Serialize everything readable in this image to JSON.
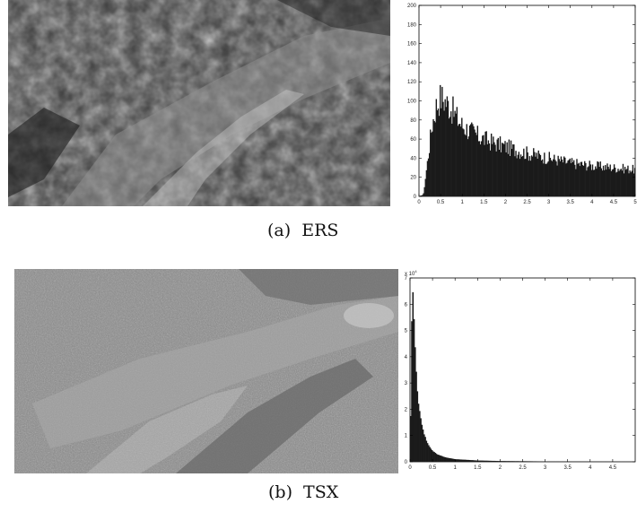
{
  "figure": {
    "panels": [
      {
        "id": "a",
        "caption_label": "(a)",
        "caption_name": "ERS",
        "caption": "(a) ERS"
      },
      {
        "id": "b",
        "caption_label": "(b)",
        "caption_name": "TSX",
        "caption": "(b) TSX"
      }
    ]
  },
  "chart_data": [
    {
      "type": "bar",
      "panel": "(a) ERS",
      "title": "",
      "xlabel": "",
      "ylabel": "",
      "xlim": [
        0,
        5
      ],
      "ylim": [
        0,
        200
      ],
      "x_ticks": [
        "0",
        "0.5",
        "1",
        "1.5",
        "2",
        "2.5",
        "3",
        "3.5",
        "4",
        "4.5",
        "5"
      ],
      "y_ticks": [
        "0",
        "20",
        "40",
        "60",
        "80",
        "100",
        "120",
        "140",
        "160",
        "180",
        "200"
      ],
      "x": [
        0.1,
        0.2,
        0.3,
        0.4,
        0.5,
        0.6,
        0.7,
        0.8,
        0.9,
        1.0,
        1.2,
        1.4,
        1.6,
        1.8,
        2.0,
        2.5,
        3.0,
        3.5,
        4.0,
        4.5,
        5.0
      ],
      "values": [
        2,
        38,
        75,
        95,
        104,
        100,
        95,
        88,
        80,
        74,
        68,
        62,
        58,
        55,
        52,
        45,
        40,
        35,
        32,
        30,
        28
      ]
    },
    {
      "type": "bar",
      "panel": "(b) TSX",
      "title": "",
      "xlabel": "",
      "ylabel": "",
      "y_scale_label": "x 10^4",
      "y_exponent_base": "x 10",
      "y_exponent_power": "4",
      "xlim": [
        0,
        5
      ],
      "ylim": [
        0,
        7
      ],
      "x_ticks": [
        "0",
        "0.5",
        "1",
        "1.5",
        "2",
        "2.5",
        "3",
        "3.5",
        "4",
        "4.5"
      ],
      "y_ticks": [
        "0",
        "1",
        "2",
        "3",
        "4",
        "5",
        "6",
        "7"
      ],
      "x": [
        0.05,
        0.1,
        0.15,
        0.2,
        0.3,
        0.4,
        0.5,
        0.6,
        0.8,
        1.0,
        1.5,
        2.0,
        3.0,
        4.0,
        5.0
      ],
      "values": [
        7.0,
        4.8,
        3.0,
        2.0,
        1.1,
        0.65,
        0.42,
        0.28,
        0.16,
        0.1,
        0.05,
        0.03,
        0.015,
        0.008,
        0.004
      ]
    }
  ]
}
